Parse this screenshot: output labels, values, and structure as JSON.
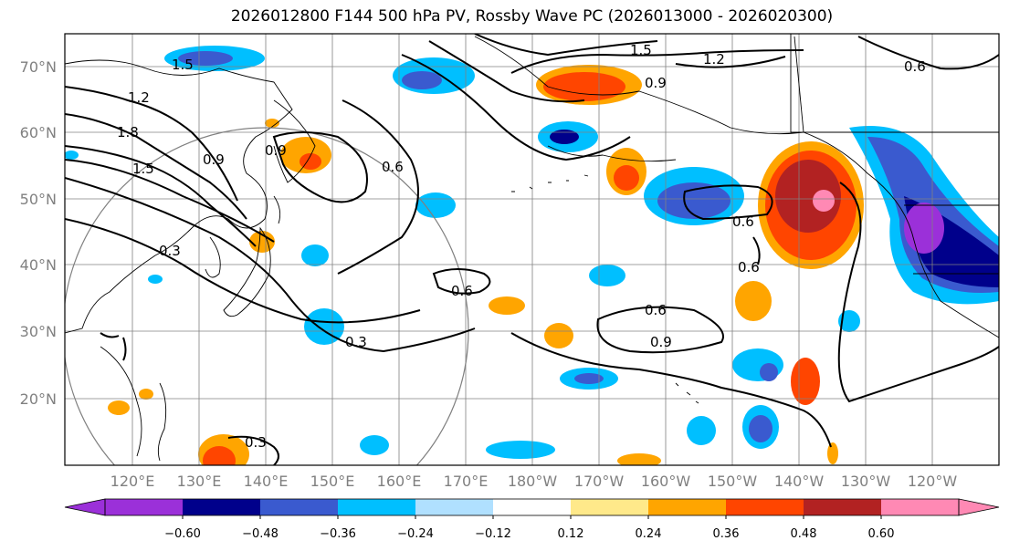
{
  "title": "2026012800 F144 500 hPa PV, Rossby Wave PC (2026013000 - 2026020300)",
  "map": {
    "lat_labels": [
      "70°N",
      "60°N",
      "50°N",
      "40°N",
      "30°N",
      "20°N"
    ],
    "lon_labels": [
      "120°E",
      "130°E",
      "140°E",
      "150°E",
      "160°E",
      "170°E",
      "180°W",
      "170°W",
      "160°W",
      "150°W",
      "140°W",
      "130°W",
      "120°W"
    ],
    "contour_labels": [
      "1.5",
      "1.2",
      "1.8",
      "1.5",
      "0.9",
      "0.9",
      "0.6",
      "0.3",
      "0.3",
      "0.6",
      "0.3",
      "1.5",
      "1.2",
      "0.9",
      "0.6",
      "0.6",
      "0.6",
      "0.6",
      "0.9"
    ]
  },
  "colorbar": {
    "ticks": [
      "−0.60",
      "−0.48",
      "−0.36",
      "−0.24",
      "−0.12",
      "0.12",
      "0.24",
      "0.36",
      "0.48",
      "0.60"
    ],
    "colors": [
      "#9b30d9",
      "#00008b",
      "#3a5acf",
      "#00bfff",
      "#b0e0ff",
      "#ffffff",
      "#ffe98a",
      "#ffa500",
      "#ff4500",
      "#b22222",
      "#ff89b4"
    ]
  }
}
